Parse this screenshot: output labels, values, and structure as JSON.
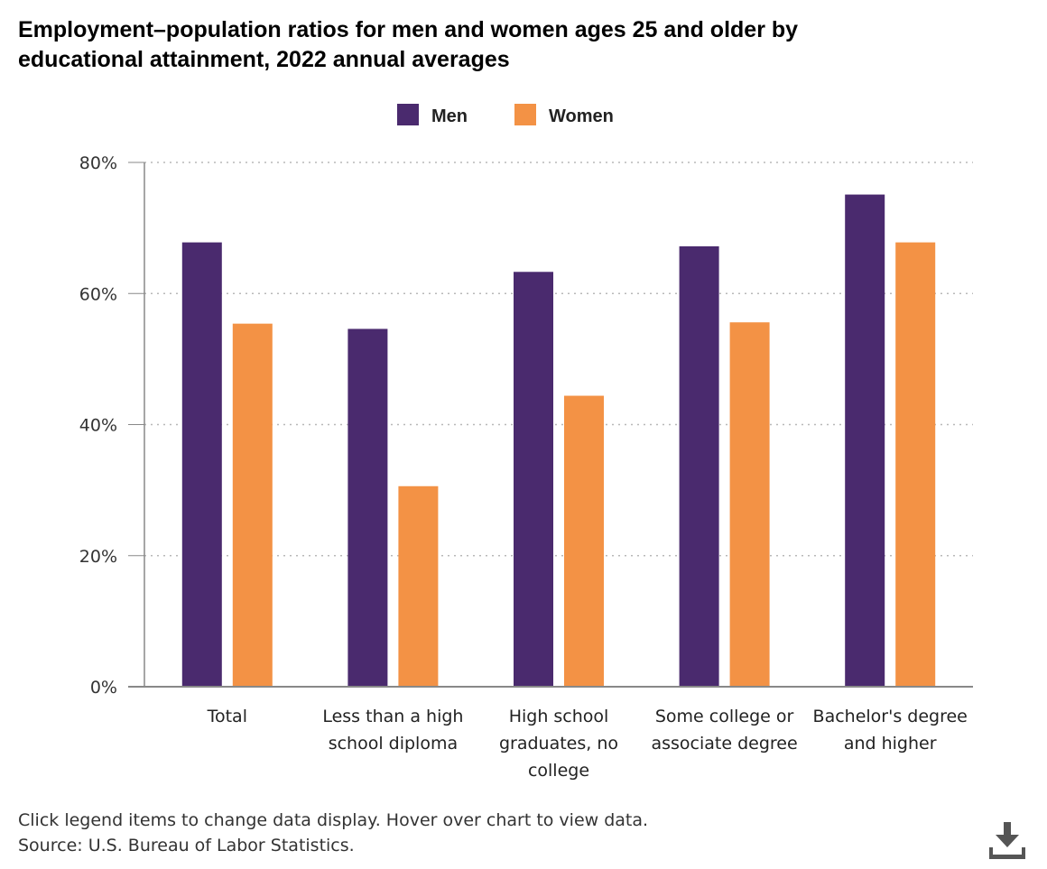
{
  "title": {
    "line1": "Employment–population ratios for men and women ages 25 and older by",
    "line2": "educational attainment, 2022 annual averages"
  },
  "footer": {
    "note": "Click legend items to change data display. Hover over chart to view data.",
    "source": "Source: U.S. Bureau of Labor Statistics."
  },
  "icons": {
    "download": "download-icon"
  },
  "chart_data": {
    "type": "bar",
    "categories": [
      [
        "Total"
      ],
      [
        "Less than a high",
        "school diploma"
      ],
      [
        "High school",
        "graduates, no",
        "college"
      ],
      [
        "Some college or",
        "associate degree"
      ],
      [
        "Bachelor's degree",
        "and higher"
      ]
    ],
    "series": [
      {
        "name": "Men",
        "color": "#4a2a6e",
        "values": [
          67.8,
          54.6,
          63.3,
          67.2,
          75.1
        ]
      },
      {
        "name": "Women",
        "color": "#f39245",
        "values": [
          55.4,
          30.6,
          44.4,
          55.6,
          67.8
        ]
      }
    ],
    "ylim": [
      0,
      80
    ],
    "yticks": [
      0,
      20,
      40,
      60,
      80
    ],
    "ytick_labels": [
      "0%",
      "20%",
      "40%",
      "60%",
      "80%"
    ],
    "grid": true,
    "legend_position": "top-center"
  }
}
